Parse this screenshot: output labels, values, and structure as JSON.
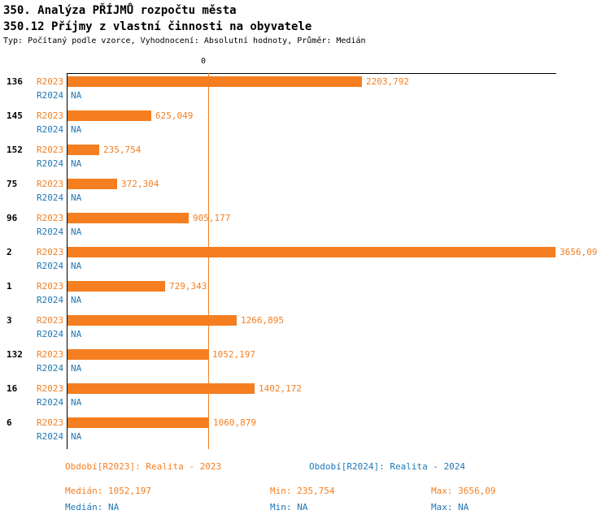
{
  "title": "350. Analýza PŘÍJMŮ rozpočtu města",
  "subtitle": "350.12 Příjmy z vlastní činnosti na obyvatele",
  "meta": "Typ: Počítaný podle vzorce, Vyhodnocení: Absolutní hodnoty, Průměr: Medián",
  "colors": {
    "r2023_orange": "#f57e20",
    "r2024_blue": "#1f77b4",
    "axis": "#000000"
  },
  "chart_data": {
    "type": "bar",
    "orientation": "horizontal",
    "title": "350.12 Příjmy z vlastní činnosti na obyvatele",
    "xlabel": "",
    "ylabel": "",
    "xlim": [
      0,
      3656.09
    ],
    "axis_zero_label": "0",
    "grid": false,
    "median_line_value": 1052.197,
    "categories": [
      "136",
      "145",
      "152",
      "75",
      "96",
      "2",
      "1",
      "3",
      "132",
      "16",
      "6"
    ],
    "series": [
      {
        "name": "R2023",
        "color": "#f57e20",
        "values": [
          2203.792,
          625.049,
          235.754,
          372.304,
          905.177,
          3656.09,
          729.343,
          1266.895,
          1052.197,
          1402.172,
          1060.879
        ],
        "labels": [
          "2203,792",
          "625,049",
          "235,754",
          "372,304",
          "905,177",
          "3656,09",
          "729,343",
          "1266,895",
          "1052,197",
          "1402,172",
          "1060,879"
        ]
      },
      {
        "name": "R2024",
        "color": "#1f77b4",
        "values": [
          null,
          null,
          null,
          null,
          null,
          null,
          null,
          null,
          null,
          null,
          null
        ],
        "labels": [
          "NA",
          "NA",
          "NA",
          "NA",
          "NA",
          "NA",
          "NA",
          "NA",
          "NA",
          "NA",
          "NA"
        ]
      }
    ]
  },
  "legend": {
    "r2023": "Období[R2023]: Realita - 2023",
    "r2024": "Období[R2024]: Realita - 2024"
  },
  "stats": {
    "r2023": {
      "median": "Medián: 1052,197",
      "min": "Min: 235,754",
      "max": "Max: 3656,09"
    },
    "r2024": {
      "median": "Medián: NA",
      "min": "Min: NA",
      "max": "Max: NA"
    }
  }
}
